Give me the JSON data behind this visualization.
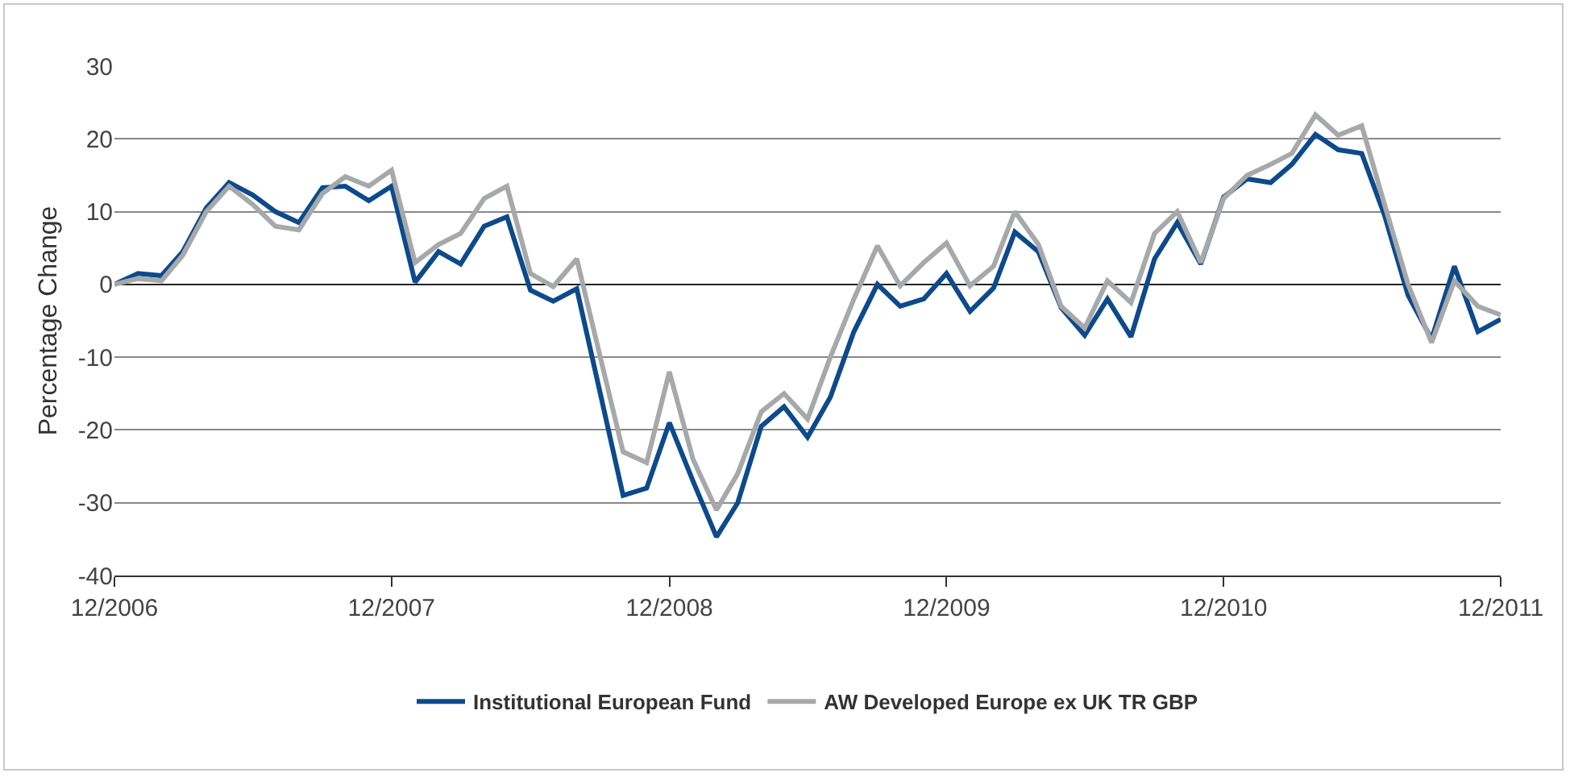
{
  "chart_data": {
    "type": "line",
    "ylabel": "Percentage Change",
    "x": [
      "2006-12",
      "2007-01",
      "2007-02",
      "2007-03",
      "2007-04",
      "2007-05",
      "2007-06",
      "2007-07",
      "2007-08",
      "2007-09",
      "2007-10",
      "2007-11",
      "2007-12",
      "2008-01",
      "2008-02",
      "2008-03",
      "2008-04",
      "2008-05",
      "2008-06",
      "2008-07",
      "2008-08",
      "2008-09",
      "2008-10",
      "2008-11",
      "2008-12",
      "2009-01",
      "2009-02",
      "2009-03",
      "2009-04",
      "2009-05",
      "2009-06",
      "2009-07",
      "2009-08",
      "2009-09",
      "2009-10",
      "2009-11",
      "2009-12",
      "2010-01",
      "2010-02",
      "2010-03",
      "2010-04",
      "2010-05",
      "2010-06",
      "2010-07",
      "2010-08",
      "2010-09",
      "2010-10",
      "2010-11",
      "2010-12",
      "2011-01",
      "2011-02",
      "2011-03",
      "2011-04",
      "2011-05",
      "2011-06",
      "2011-07",
      "2011-08",
      "2011-09",
      "2011-10",
      "2011-11",
      "2011-12"
    ],
    "series": [
      {
        "name": "Institutional European Fund",
        "color": "#0d4a8c",
        "values": [
          0,
          1.5,
          1.2,
          4.5,
          10.5,
          14,
          12.3,
          10,
          8.5,
          13.3,
          13.5,
          11.5,
          13.5,
          0.3,
          4.5,
          2.8,
          8,
          9.3,
          -0.8,
          -2.3,
          -0.6,
          -15,
          -29,
          -28,
          -19,
          -27,
          -34.7,
          -30,
          -19.5,
          -16.8,
          -21,
          -15.5,
          -6.5,
          0,
          -3,
          -2,
          1.5,
          -3.7,
          -0.5,
          7.2,
          4.5,
          -3.2,
          -7,
          -2,
          -7.2,
          3.5,
          8.5,
          2.8,
          12,
          14.5,
          14,
          16.5,
          20.6,
          18.5,
          18,
          9.5,
          -1.5,
          -7.5,
          2.5,
          -6.5,
          -4.8
        ]
      },
      {
        "name": "AW Developed Europe ex UK TR GBP",
        "color": "#a6a8aa",
        "values": [
          0,
          0.8,
          0.5,
          4,
          10,
          13.5,
          11,
          8,
          7.5,
          12.5,
          14.8,
          13.5,
          15.7,
          3,
          5.5,
          7,
          11.8,
          13.5,
          1.5,
          -0.3,
          3.5,
          -10,
          -23,
          -24.5,
          -12,
          -24,
          -31,
          -26,
          -17.5,
          -15,
          -18.5,
          -10,
          -2,
          5.3,
          -0.2,
          3,
          5.7,
          -0.2,
          2.5,
          10,
          5.5,
          -3,
          -6,
          0.5,
          -2.5,
          7,
          10,
          3,
          11.8,
          15,
          16.5,
          18,
          23.3,
          20.5,
          21.8,
          11,
          0,
          -8,
          0.5,
          -3,
          -4.2
        ]
      }
    ],
    "xlim": [
      "2006-12",
      "2011-12"
    ],
    "xticks": [
      {
        "value": "2006-12",
        "label": "12/2006"
      },
      {
        "value": "2007-12",
        "label": "12/2007"
      },
      {
        "value": "2008-12",
        "label": "12/2008"
      },
      {
        "value": "2009-12",
        "label": "12/2009"
      },
      {
        "value": "2010-12",
        "label": "12/2010"
      },
      {
        "value": "2011-12",
        "label": "12/2011"
      }
    ],
    "ylim": [
      -40,
      30
    ],
    "yticks": [
      -40,
      -30,
      -20,
      -10,
      0,
      10,
      20,
      30
    ],
    "grid": "y",
    "legend": "bottom",
    "marker": "none",
    "line_style": "solid"
  }
}
